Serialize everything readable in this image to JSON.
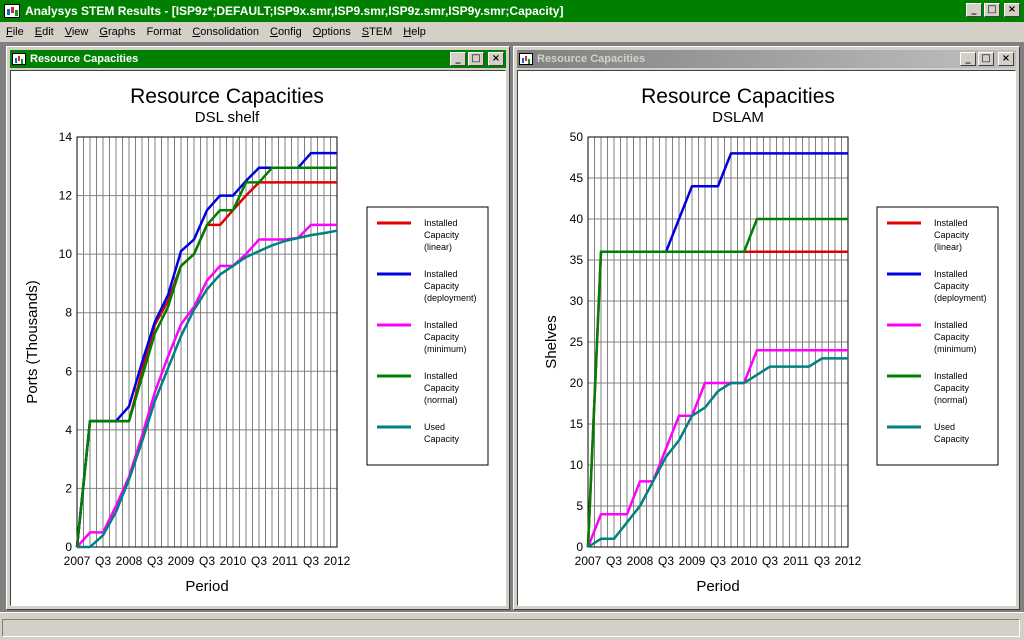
{
  "window": {
    "title": "Analysys STEM Results - [ISP9z*;DEFAULT;ISP9x.smr,ISP9.smr,ISP9z.smr,ISP9y.smr;Capacity]",
    "minimize": "_",
    "maximize": "□",
    "close": "×"
  },
  "menu": {
    "items": [
      {
        "first": "F",
        "rest": "ile"
      },
      {
        "first": "E",
        "rest": "dit"
      },
      {
        "first": "V",
        "rest": "iew"
      },
      {
        "first": "G",
        "rest": "raphs"
      },
      {
        "first": "",
        "rest": "Format"
      },
      {
        "first": "C",
        "rest": "onsolidation"
      },
      {
        "first": "C",
        "rest": "onfig"
      },
      {
        "first": "O",
        "rest": "ptions"
      },
      {
        "first": "S",
        "rest": "TEM"
      },
      {
        "first": "H",
        "rest": "elp"
      }
    ]
  },
  "child_windows": [
    {
      "title": "Resource Capacities",
      "minimize": "_",
      "maximize": "□",
      "close": "×"
    },
    {
      "title": "Resource Capacities",
      "minimize": "_",
      "maximize": "□",
      "close": "×"
    }
  ],
  "colors": {
    "linear": "#e00000",
    "deployment": "#0000e0",
    "minimum": "#ff00ff",
    "normal": "#008000",
    "used": "#008080"
  },
  "chart_data": [
    {
      "type": "line",
      "title": "Resource Capacities",
      "subtitle": "DSL shelf",
      "xlabel": "Period",
      "ylabel": "Ports  (Thousands)",
      "ylim": [
        0,
        14
      ],
      "yticks": [
        0,
        2,
        4,
        6,
        8,
        10,
        12,
        14
      ],
      "xlim": [
        2007,
        2012
      ],
      "xtick_labels": [
        "2007",
        "Q3",
        "2008",
        "Q3",
        "2009",
        "Q3",
        "2010",
        "Q3",
        "2011",
        "Q3",
        "2012"
      ],
      "grid": true,
      "legend_position": "right",
      "x": [
        2007,
        2007.25,
        2007.5,
        2007.75,
        2008,
        2008.25,
        2008.5,
        2008.75,
        2009,
        2009.25,
        2009.5,
        2009.75,
        2010,
        2010.25,
        2010.5,
        2010.75,
        2011,
        2011.25,
        2011.5,
        2011.75,
        2012
      ],
      "series": [
        {
          "name": "Installed Capacity (linear)",
          "color_key": "linear",
          "values": [
            0,
            4.3,
            4.3,
            4.3,
            4.3,
            6.0,
            7.6,
            8.4,
            9.6,
            10.0,
            11.0,
            11.0,
            11.5,
            12.0,
            12.45,
            12.45,
            12.45,
            12.45,
            12.45,
            12.45,
            12.45
          ]
        },
        {
          "name": "Installed Capacity (deployment)",
          "color_key": "deployment",
          "values": [
            0,
            4.3,
            4.3,
            4.3,
            4.8,
            6.3,
            7.7,
            8.6,
            10.1,
            10.5,
            11.5,
            12.0,
            12.0,
            12.5,
            12.95,
            12.95,
            12.95,
            12.95,
            13.45,
            13.45,
            13.45
          ]
        },
        {
          "name": "Installed Capacity (minimum)",
          "color_key": "minimum",
          "values": [
            0,
            0.5,
            0.5,
            1.4,
            2.4,
            3.8,
            5.3,
            6.5,
            7.6,
            8.2,
            9.1,
            9.6,
            9.6,
            10.0,
            10.5,
            10.5,
            10.5,
            10.55,
            11.0,
            11.0,
            11.0
          ]
        },
        {
          "name": "Installed Capacity (normal)",
          "color_key": "normal",
          "values": [
            0,
            4.3,
            4.3,
            4.3,
            4.3,
            5.8,
            7.3,
            8.2,
            9.6,
            10.0,
            11.0,
            11.5,
            11.5,
            12.45,
            12.45,
            12.95,
            12.95,
            12.95,
            12.95,
            12.95,
            12.95
          ]
        },
        {
          "name": "Used Capacity",
          "color_key": "used",
          "values": [
            0,
            0,
            0.4,
            1.2,
            2.3,
            3.6,
            5.0,
            6.1,
            7.2,
            8.1,
            8.8,
            9.3,
            9.6,
            9.9,
            10.1,
            10.3,
            10.45,
            10.55,
            10.65,
            10.72,
            10.8
          ]
        }
      ]
    },
    {
      "type": "line",
      "title": "Resource Capacities",
      "subtitle": "DSLAM",
      "xlabel": "Period",
      "ylabel": "Shelves",
      "ylim": [
        0,
        50
      ],
      "yticks": [
        0,
        5,
        10,
        15,
        20,
        25,
        30,
        35,
        40,
        45,
        50
      ],
      "xlim": [
        2007,
        2012
      ],
      "xtick_labels": [
        "2007",
        "Q3",
        "2008",
        "Q3",
        "2009",
        "Q3",
        "2010",
        "Q3",
        "2011",
        "Q3",
        "2012"
      ],
      "grid": true,
      "legend_position": "right",
      "x": [
        2007,
        2007.25,
        2007.5,
        2007.75,
        2008,
        2008.25,
        2008.5,
        2008.75,
        2009,
        2009.25,
        2009.5,
        2009.75,
        2010,
        2010.25,
        2010.5,
        2010.75,
        2011,
        2011.25,
        2011.5,
        2011.75,
        2012
      ],
      "series": [
        {
          "name": "Installed Capacity (linear)",
          "color_key": "linear",
          "values": [
            0,
            36,
            36,
            36,
            36,
            36,
            36,
            36,
            36,
            36,
            36,
            36,
            36,
            36,
            36,
            36,
            36,
            36,
            36,
            36,
            36
          ]
        },
        {
          "name": "Installed Capacity (deployment)",
          "color_key": "deployment",
          "values": [
            null,
            null,
            null,
            null,
            null,
            null,
            36,
            40,
            44,
            44,
            44,
            48,
            48,
            48,
            48,
            48,
            48,
            48,
            48,
            48,
            48
          ]
        },
        {
          "name": "Installed Capacity (minimum)",
          "color_key": "minimum",
          "values": [
            0,
            4,
            4,
            4,
            8,
            8,
            12,
            16,
            16,
            20,
            20,
            20,
            20,
            24,
            24,
            24,
            24,
            24,
            24,
            24,
            24
          ]
        },
        {
          "name": "Installed Capacity (normal)",
          "color_key": "normal",
          "values": [
            0,
            36,
            36,
            36,
            36,
            36,
            36,
            36,
            36,
            36,
            36,
            36,
            36,
            40,
            40,
            40,
            40,
            40,
            40,
            40,
            40
          ]
        },
        {
          "name": "Used Capacity",
          "color_key": "used",
          "values": [
            0,
            1,
            1,
            3,
            5,
            8,
            11,
            13,
            16,
            17,
            19,
            20,
            20,
            21,
            22,
            22,
            22,
            22,
            23,
            23,
            23
          ]
        }
      ]
    }
  ],
  "legend_items": [
    {
      "lines": [
        "Installed",
        "Capacity",
        "(linear)"
      ],
      "color_key": "linear"
    },
    {
      "lines": [
        "Installed",
        "Capacity",
        "(deployment)"
      ],
      "color_key": "deployment"
    },
    {
      "lines": [
        "Installed",
        "Capacity",
        "(minimum)"
      ],
      "color_key": "minimum"
    },
    {
      "lines": [
        "Installed",
        "Capacity",
        "(normal)"
      ],
      "color_key": "normal"
    },
    {
      "lines": [
        "Used",
        "Capacity"
      ],
      "color_key": "used"
    }
  ]
}
